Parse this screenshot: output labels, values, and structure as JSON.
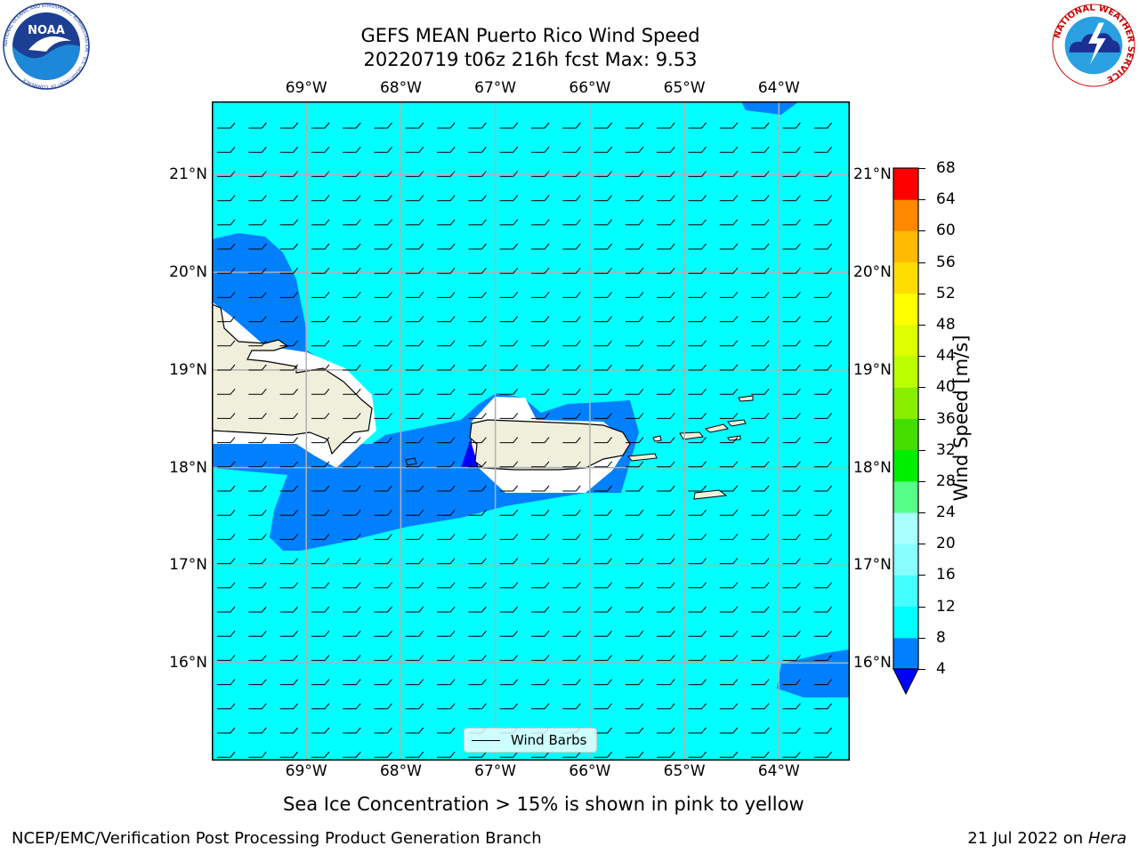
{
  "title": {
    "line1": "GEFS MEAN Puerto Rico Wind Speed",
    "line2": "20220719 t06z 216h fcst   Max: 9.53"
  },
  "logos": {
    "left": {
      "name": "noaa-logo",
      "text": "NOAA",
      "ring_text": "NATIONAL OCEANIC AND ATMOSPHERIC ADMINISTRATION · U.S. DEPARTMENT OF COMMERCE"
    },
    "right": {
      "name": "nws-logo",
      "ring_text": "NATIONAL WEATHER SERVICE"
    }
  },
  "map": {
    "lon_ticks": [
      "69°W",
      "68°W",
      "67°W",
      "66°W",
      "65°W",
      "64°W"
    ],
    "lat_ticks": [
      "21°N",
      "20°N",
      "19°N",
      "18°N",
      "17°N",
      "16°N"
    ],
    "lon_values": [
      -69,
      -68,
      -67,
      -66,
      -65,
      -64
    ],
    "lat_values": [
      21,
      20,
      19,
      18,
      17,
      16
    ],
    "extent": {
      "lon": [
        -70,
        -63.25
      ],
      "lat": [
        15,
        21.75
      ]
    },
    "colors": {
      "ocean_8_12": "#00ffff",
      "wind_4_8": "#0080ff",
      "wind_lt4": "#0000ff",
      "land": "#efefdc",
      "grid": "#b0b0b0"
    },
    "wind_barbs": {
      "legend_label": "Wind Barbs",
      "direction": "east"
    }
  },
  "colorbar": {
    "label": "Wind Speed [m/s]",
    "ticks": [
      "68",
      "64",
      "60",
      "56",
      "52",
      "48",
      "44",
      "40",
      "36",
      "32",
      "28",
      "24",
      "20",
      "16",
      "12",
      "8",
      "4"
    ],
    "colors_bottom_to_top": [
      "#0080ff",
      "#00ffff",
      "#44ffff",
      "#88ffff",
      "#aaffff",
      "#55ff88",
      "#00ee00",
      "#44dd00",
      "#88ee00",
      "#bbff00",
      "#ddff00",
      "#ffff00",
      "#ffdd00",
      "#ffbb00",
      "#ff8800",
      "#ff5500",
      "#ff2200",
      "#ff0000"
    ],
    "extend_color": "#0000ff"
  },
  "note": "Sea Ice Concentration > 15% is shown in pink to yellow",
  "footer": {
    "left": "NCEP/EMC/Verification Post Processing Product Generation Branch",
    "right_date": "21 Jul 2022 on ",
    "right_host": "Hera"
  }
}
